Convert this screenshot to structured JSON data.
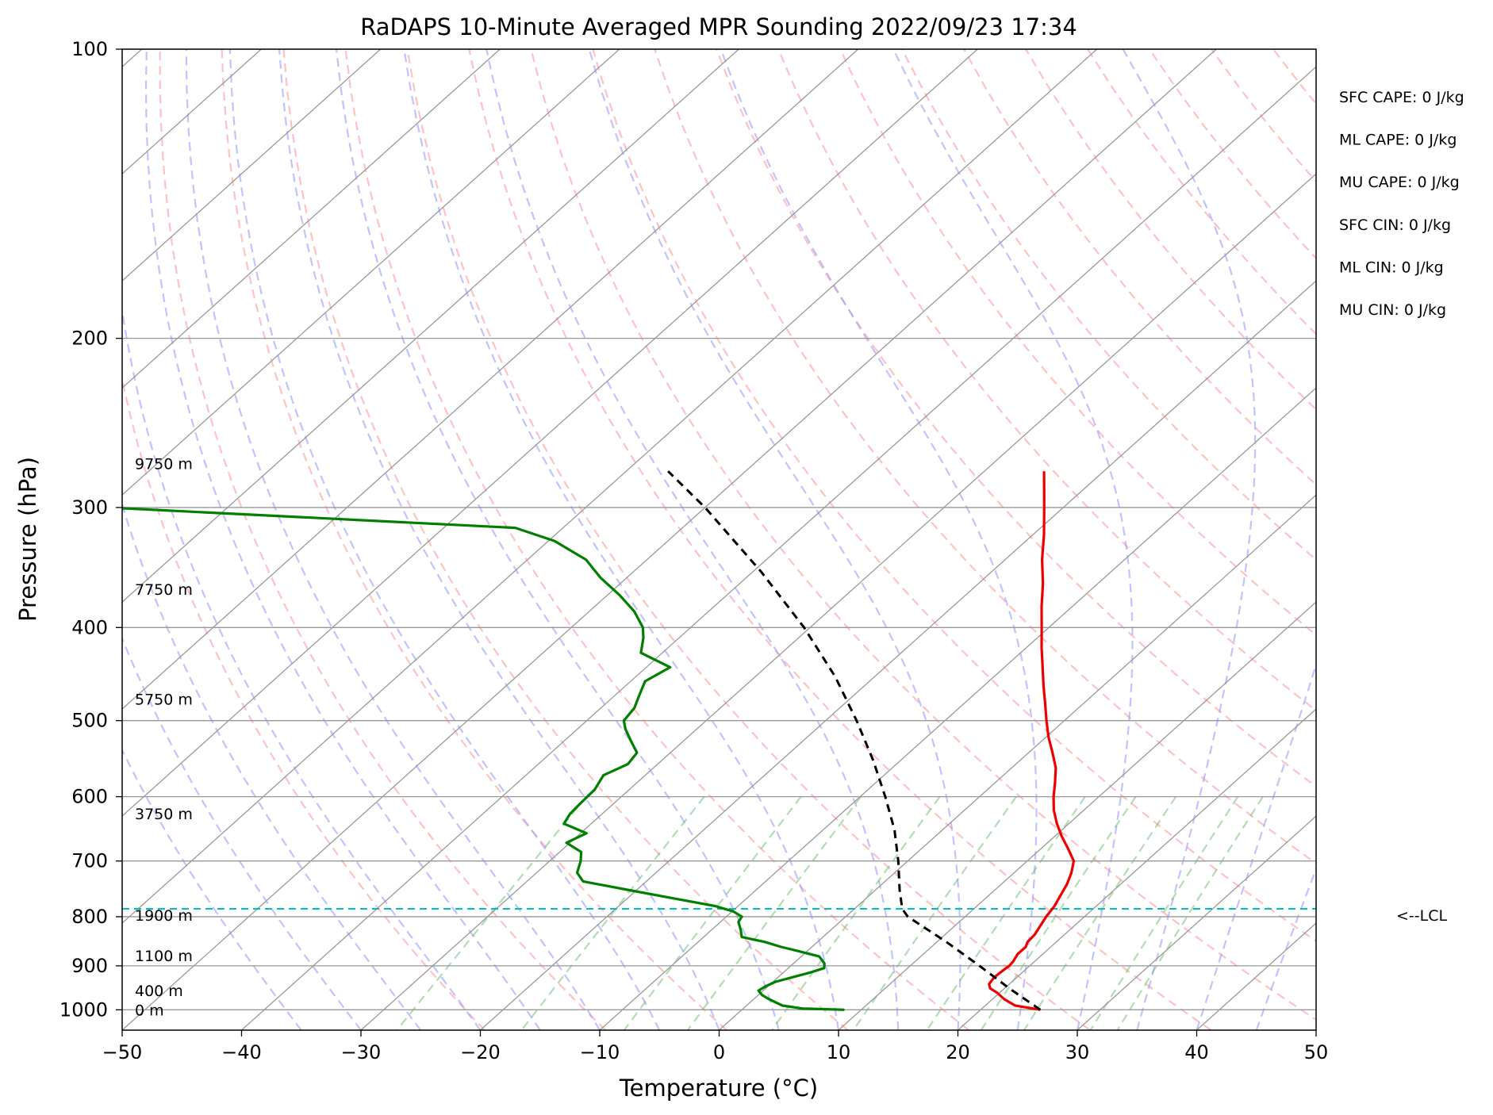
{
  "chart_data": {
    "type": "line",
    "subtype": "skew-T log-p sounding",
    "title": "RaDAPS 10-Minute Averaged MPR Sounding 2022/09/23 17:34",
    "xlabel": "Temperature (°C)",
    "ylabel": "Pressure (hPa)",
    "xlim": [
      -50,
      50
    ],
    "ylim": [
      1050,
      100
    ],
    "y_scale": "log",
    "x_ticks": [
      "−50",
      "−40",
      "−30",
      "−20",
      "−10",
      "0",
      "10",
      "20",
      "30",
      "40",
      "50"
    ],
    "y_ticks": [
      1000,
      900,
      800,
      700,
      600,
      500,
      400,
      300,
      200,
      100
    ],
    "grid": true,
    "colors": {
      "temperature": "#ee0000",
      "dewpoint": "#007f00",
      "parcel": "#000000",
      "lcl": "#00bfbf",
      "dry_adiabats": "#ff9999",
      "moist_adiabats": "#9999ff",
      "mixing_ratio": "#66bb66",
      "isotherms": "#999999"
    },
    "series": [
      {
        "key": "temperature",
        "p": [
          1000,
          990,
          975,
          960,
          950,
          940,
          925,
          910,
          900,
          890,
          875,
          860,
          850,
          835,
          820,
          800,
          780,
          760,
          740,
          720,
          700,
          680,
          660,
          640,
          620,
          600,
          580,
          560,
          540,
          520,
          500,
          480,
          460,
          440,
          420,
          400,
          380,
          360,
          340,
          320,
          300,
          285,
          275
        ],
        "t": [
          25.0,
          22.5,
          21.0,
          19.8,
          18.8,
          18.3,
          18.1,
          18.2,
          18.3,
          18.2,
          17.9,
          17.9,
          17.6,
          17.5,
          17.2,
          16.8,
          16.5,
          16.0,
          15.5,
          14.8,
          13.9,
          12.3,
          10.6,
          9.0,
          7.5,
          6.2,
          5.0,
          3.7,
          2.0,
          0.2,
          -1.5,
          -3.2,
          -5.0,
          -6.8,
          -8.7,
          -10.6,
          -12.6,
          -14.6,
          -16.9,
          -19.1,
          -21.6,
          -23.6,
          -25.0
        ]
      },
      {
        "key": "dewpoint",
        "p": [
          1000,
          997,
          990,
          975,
          965,
          955,
          945,
          935,
          925,
          915,
          905,
          895,
          880,
          870,
          860,
          850,
          840,
          825,
          810,
          800,
          790,
          780,
          765,
          750,
          735,
          720,
          700,
          685,
          670,
          655,
          640,
          625,
          610,
          590,
          570,
          555,
          540,
          525,
          510,
          500,
          485,
          470,
          455,
          440,
          425,
          410,
          400,
          385,
          370,
          355,
          340,
          325,
          315,
          300
        ],
        "t": [
          8.6,
          5.0,
          3.0,
          1.3,
          0.3,
          -0.4,
          -0.2,
          0.2,
          1.2,
          2.2,
          3.0,
          2.6,
          1.5,
          -0.5,
          -2.6,
          -4.4,
          -6.8,
          -7.6,
          -8.5,
          -8.7,
          -9.9,
          -11.9,
          -16.3,
          -20.8,
          -25.3,
          -26.6,
          -27.4,
          -28.2,
          -30.3,
          -29.5,
          -32.3,
          -32.7,
          -32.8,
          -32.9,
          -33.5,
          -32.5,
          -32.8,
          -34.4,
          -36.0,
          -36.9,
          -37.2,
          -38.0,
          -38.8,
          -38.0,
          -41.8,
          -43.0,
          -44.0,
          -46.2,
          -49.0,
          -52.2,
          -55.1,
          -59.5,
          -64.0,
          -100.0
        ]
      },
      {
        "key": "parcel",
        "p": [
          1000,
          950,
          900,
          850,
          800,
          785,
          750,
          700,
          650,
          600,
          550,
          500,
          450,
          400,
          350,
          300,
          275
        ],
        "t": [
          25.0,
          20.4,
          15.8,
          10.8,
          5.2,
          4.0,
          2.0,
          -0.8,
          -4.0,
          -7.9,
          -12.3,
          -17.4,
          -23.3,
          -30.5,
          -39.3,
          -50.0,
          -56.5
        ]
      }
    ],
    "lcl": {
      "p": 785,
      "label": "<--LCL"
    },
    "height_labels": [
      {
        "text": "0 m",
        "p": 1000
      },
      {
        "text": "400 m",
        "p": 955
      },
      {
        "text": "1100 m",
        "p": 878
      },
      {
        "text": "1900 m",
        "p": 797
      },
      {
        "text": "3750 m",
        "p": 625
      },
      {
        "text": "5750 m",
        "p": 475
      },
      {
        "text": "7750 m",
        "p": 365
      },
      {
        "text": "9750 m",
        "p": 270
      }
    ],
    "indices": [
      "SFC CAPE: 0 J/kg",
      "ML CAPE: 0 J/kg",
      "MU CAPE: 0 J/kg",
      "SFC CIN: 0 J/kg",
      "ML CIN: 0 J/kg",
      "MU CIN: 0 J/kg"
    ]
  }
}
